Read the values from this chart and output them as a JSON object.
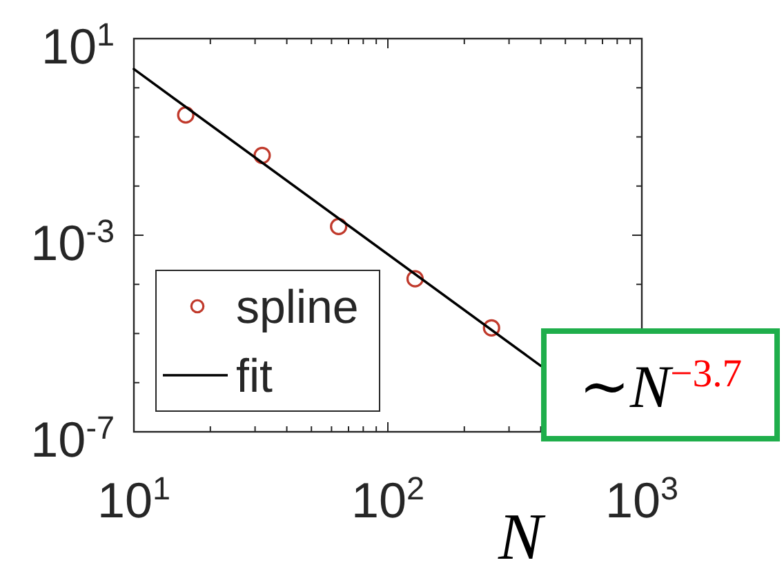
{
  "chart_data": {
    "type": "scatter",
    "xlabel": "N",
    "annotations": [
      "∼N$^{−3.7}$"
    ],
    "series": [
      {
        "name": "spline",
        "color": "#c0392b",
        "marker": "circle",
        "x": [
          16,
          32,
          64,
          128,
          256
        ],
        "values": [
          0.28,
          0.042,
          0.0015,
          0.00013,
          1.3e-05
        ]
      },
      {
        "name": "fit",
        "type": "line",
        "color": "#000000",
        "line_style": "solid",
        "x": [
          10,
          400
        ],
        "values": [
          2.4,
          2.2e-06
        ]
      }
    ],
    "xlim": [
      10,
      1000
    ],
    "ylim": [
      1e-07,
      10
    ],
    "xticks": [
      {
        "value": 10,
        "label": "10$^{1}$"
      },
      {
        "value": 20,
        "label": null
      },
      {
        "value": 30,
        "label": null
      },
      {
        "value": 40,
        "label": null
      },
      {
        "value": 50,
        "label": null
      },
      {
        "value": 60,
        "label": null
      },
      {
        "value": 70,
        "label": null
      },
      {
        "value": 80,
        "label": null
      },
      {
        "value": 90,
        "label": null
      },
      {
        "value": 100,
        "label": "10$^{2}$"
      },
      {
        "value": 200,
        "label": null
      },
      {
        "value": 300,
        "label": null
      },
      {
        "value": 400,
        "label": null
      },
      {
        "value": 500,
        "label": null
      },
      {
        "value": 600,
        "label": null
      },
      {
        "value": 700,
        "label": null
      },
      {
        "value": 800,
        "label": null
      },
      {
        "value": 900,
        "label": null
      },
      {
        "value": 1000,
        "label": "10$^{3}$"
      }
    ],
    "yticks": [
      {
        "value": 10,
        "label": "10$^{1}$"
      },
      {
        "value": 1,
        "label": null
      },
      {
        "value": 0.1,
        "label": null
      },
      {
        "value": 0.01,
        "label": null
      },
      {
        "value": 0.001,
        "label": "10$^{-3}$"
      },
      {
        "value": 0.0001,
        "label": null
      },
      {
        "value": 1e-05,
        "label": null
      },
      {
        "value": 1e-06,
        "label": null
      },
      {
        "value": 1e-07,
        "label": "10$^{-7}$"
      }
    ],
    "log": "xy",
    "legend": "bottom left"
  }
}
